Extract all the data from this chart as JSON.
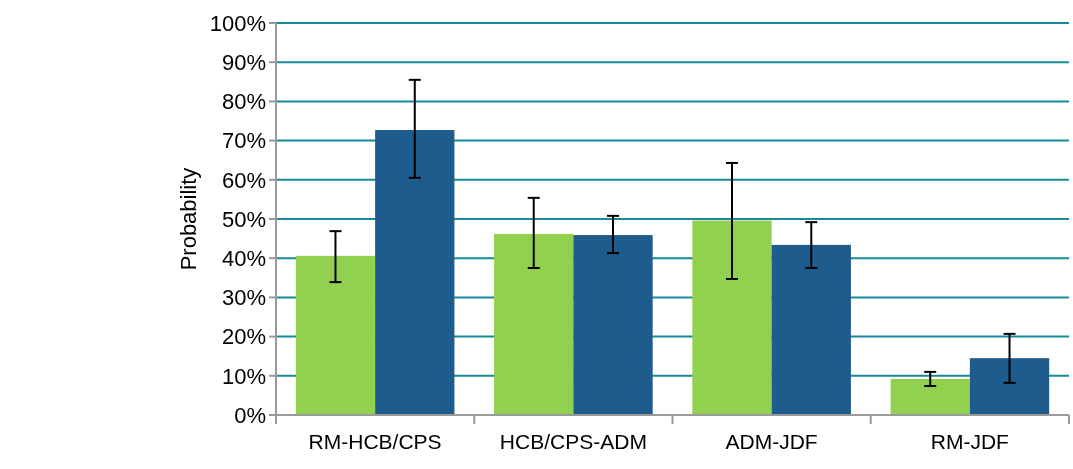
{
  "chart_data": {
    "type": "bar",
    "ylabel": "Probability",
    "categories": [
      "RM-HCB/CPS",
      "HCB/CPS-ADM",
      "ADM-JDF",
      "RM-JDF"
    ],
    "series": [
      {
        "color": "#92d050",
        "values": [
          40.6,
          46.2,
          49.6,
          9.2
        ],
        "errors": [
          [
            33.9,
            46.9
          ],
          [
            37.5,
            55.4
          ],
          [
            34.7,
            64.3
          ],
          [
            7.4,
            11.0
          ]
        ]
      },
      {
        "color": "#1f5c8e",
        "values": [
          72.7,
          45.9,
          43.4,
          14.5
        ],
        "errors": [
          [
            60.5,
            85.5
          ],
          [
            41.3,
            50.8
          ],
          [
            37.5,
            49.2
          ],
          [
            8.2,
            20.7
          ]
        ]
      }
    ],
    "ylim": [
      0,
      100
    ],
    "yticks": [
      {
        "value": 0,
        "label": "0%"
      },
      {
        "value": 10,
        "label": "10%"
      },
      {
        "value": 20,
        "label": "20%"
      },
      {
        "value": 30,
        "label": "30%"
      },
      {
        "value": 40,
        "label": "40%"
      },
      {
        "value": 50,
        "label": "50%"
      },
      {
        "value": 60,
        "label": "60%"
      },
      {
        "value": 70,
        "label": "70%"
      },
      {
        "value": 80,
        "label": "80%"
      },
      {
        "value": 90,
        "label": "90%"
      },
      {
        "value": 100,
        "label": "100%"
      }
    ],
    "grid": "y"
  }
}
